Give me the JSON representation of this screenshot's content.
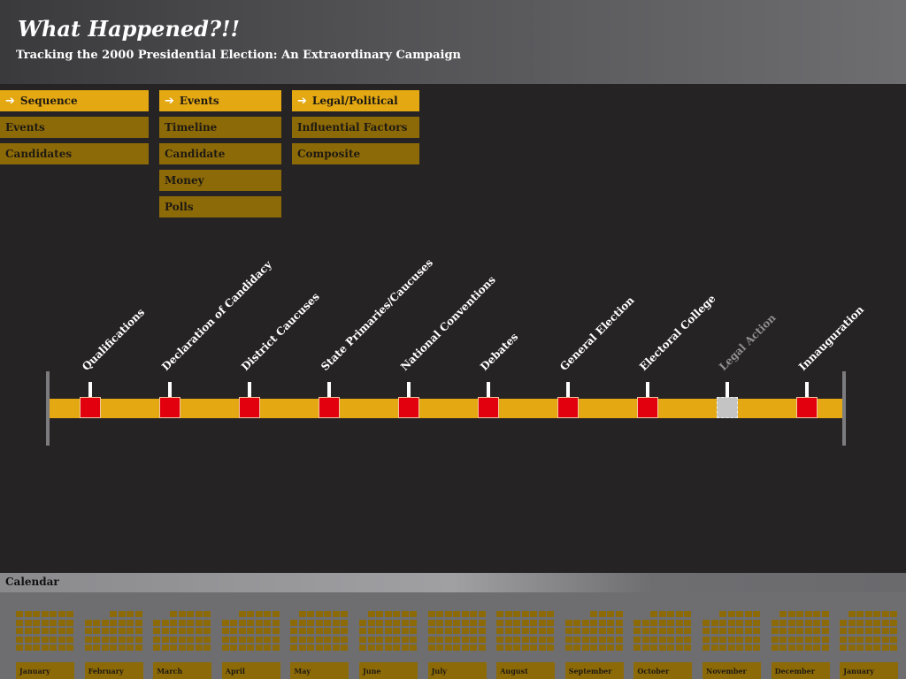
{
  "header": {
    "title": "What Happened?!!",
    "subtitle": "Tracking the 2000 Presidential Election: An Extraordinary Campaign"
  },
  "menus": {
    "col1": [
      {
        "label": "Sequence",
        "active": true
      },
      {
        "label": "Events",
        "active": false
      },
      {
        "label": "Candidates",
        "active": false
      }
    ],
    "col2": [
      {
        "label": "Events",
        "active": true
      },
      {
        "label": "Timeline",
        "active": false
      },
      {
        "label": "Candidate",
        "active": false
      },
      {
        "label": "Money",
        "active": false
      },
      {
        "label": "Polls",
        "active": false
      }
    ],
    "col3": [
      {
        "label": "Legal/Political",
        "active": true
      },
      {
        "label": "Influential Factors",
        "active": false
      },
      {
        "label": "Composite",
        "active": false
      }
    ],
    "arrow_icon": "arrow-right-icon"
  },
  "timeline": {
    "stages": [
      {
        "label": "Qualifications",
        "enabled": true
      },
      {
        "label": "Declaration of Candidacy",
        "enabled": true
      },
      {
        "label": "District Caucuses",
        "enabled": true
      },
      {
        "label": "State Primaries/Caucuses",
        "enabled": true
      },
      {
        "label": "National Conventions",
        "enabled": true
      },
      {
        "label": "Debates",
        "enabled": true
      },
      {
        "label": "General Election",
        "enabled": true
      },
      {
        "label": "Electoral College",
        "enabled": true
      },
      {
        "label": "Legal Action",
        "enabled": false
      },
      {
        "label": "Innauguration",
        "enabled": true
      }
    ],
    "colors": {
      "bar": "#e3a812",
      "node": "#e2000f",
      "node_disabled": "#c4c4c4"
    }
  },
  "calendar": {
    "title": "Calendar",
    "months": [
      "January",
      "February",
      "March",
      "April",
      "May",
      "June",
      "July",
      "August",
      "September",
      "October",
      "November",
      "December",
      "January"
    ]
  }
}
